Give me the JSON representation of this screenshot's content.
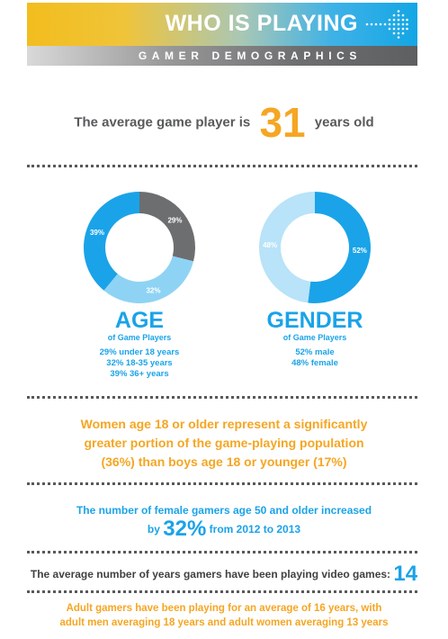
{
  "header": {
    "title": "WHO IS PLAYING",
    "subtitle": "GAMER DEMOGRAPHICS"
  },
  "average_age": {
    "prefix": "The average game player is",
    "value": "31",
    "suffix": "years old"
  },
  "age_section": {
    "title": "AGE",
    "subtitle": "of Game Players",
    "legend": [
      "29% under 18 years",
      "32% 18-35 years",
      "39% 36+ years"
    ]
  },
  "gender_section": {
    "title": "GENDER",
    "subtitle": "of Game Players",
    "legend": [
      "52% male",
      "48% female"
    ]
  },
  "women_statement": {
    "line1": "Women age 18 or older represent a significantly",
    "line2": "greater portion of the game-playing population",
    "line3": "(36%) than boys age 18 or younger (17%)"
  },
  "female_50": {
    "line1": "The number of female gamers age 50 and older increased",
    "by": "by",
    "value": "32%",
    "suffix": "from 2012 to 2013"
  },
  "years_playing": {
    "text": "The average number of years gamers have been playing video games:",
    "value": "14"
  },
  "adult_gamers": {
    "line1": "Adult gamers have been playing for an average of 16 years, with",
    "line2": "adult men averaging 18 years and adult women averaging 13 years"
  },
  "colors": {
    "orange": "#f5a623",
    "blue": "#1aa3e8",
    "light_blue": "#8fd3f4",
    "gray": "#6d6e70",
    "dark_text": "#58595b"
  },
  "chart_data": [
    {
      "type": "pie",
      "title": "AGE",
      "subtitle": "of Game Players",
      "donut": true,
      "slices": [
        {
          "label": "under 18 years",
          "value": 29,
          "display": "29%",
          "color": "#6d6e70"
        },
        {
          "label": "18-35 years",
          "value": 32,
          "display": "32%",
          "color": "#8fd3f4"
        },
        {
          "label": "36+ years",
          "value": 39,
          "display": "39%",
          "color": "#1aa3e8"
        }
      ]
    },
    {
      "type": "pie",
      "title": "GENDER",
      "subtitle": "of Game Players",
      "donut": true,
      "slices": [
        {
          "label": "male",
          "value": 52,
          "display": "52%",
          "color": "#1aa3e8"
        },
        {
          "label": "female",
          "value": 48,
          "display": "48%",
          "color": "#b8e3f8"
        }
      ]
    }
  ]
}
